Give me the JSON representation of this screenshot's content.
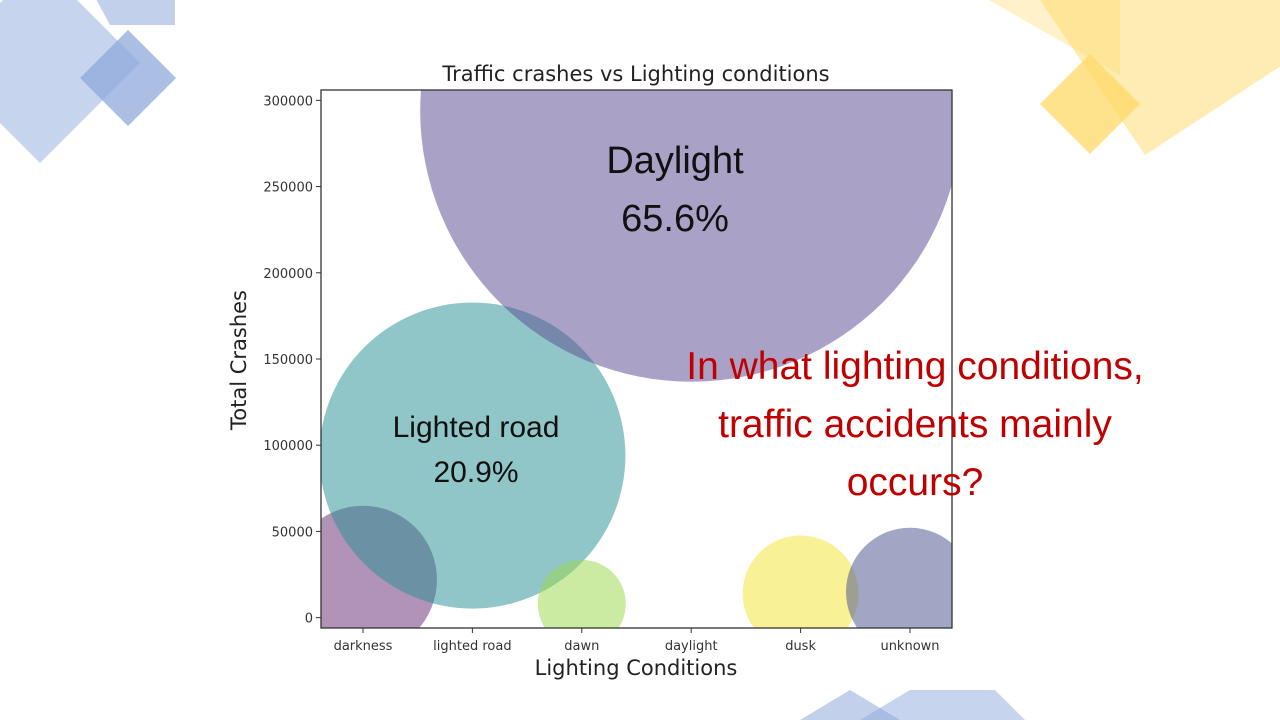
{
  "colors": {
    "blue_deco": "#8faadc",
    "yellow_deco": "#ffd966",
    "question": "#c00000",
    "darkness": "#6a2f74",
    "lighted_road": "#2a9294",
    "dawn": "#9bd94f",
    "daylight": "#5c4c92",
    "dusk": "#f3e84f",
    "unknown": "#4a5590"
  },
  "chart_data": {
    "type": "scatter",
    "title": "Traffic crashes vs Lighting conditions",
    "xlabel": "Lighting Conditions",
    "ylabel": "Total Crashes",
    "categories": [
      "darkness",
      "lighted road",
      "dawn",
      "daylight",
      "dusk",
      "unknown"
    ],
    "yticks": [
      0,
      50000,
      100000,
      150000,
      200000,
      250000,
      300000
    ],
    "ylim": [
      -6000,
      306000
    ],
    "grid": false,
    "points": [
      {
        "category": "darkness",
        "y": 22000,
        "color": "#6a2f74"
      },
      {
        "category": "lighted road",
        "y": 94000,
        "color": "#2a9294"
      },
      {
        "category": "dawn",
        "y": 8000,
        "color": "#9bd94f"
      },
      {
        "category": "daylight",
        "y": 294000,
        "color": "#5c4c92"
      },
      {
        "category": "dusk",
        "y": 14000,
        "color": "#f3e84f"
      },
      {
        "category": "unknown",
        "y": 15000,
        "color": "#4a5590"
      }
    ],
    "annotations": [
      {
        "label": "Daylight",
        "value": "65.6%"
      },
      {
        "label": "Lighted road",
        "value": "20.9%"
      }
    ]
  },
  "question": {
    "lines": [
      "In what lighting  conditions,",
      "traffic accidents mainly",
      "occurs?"
    ]
  }
}
